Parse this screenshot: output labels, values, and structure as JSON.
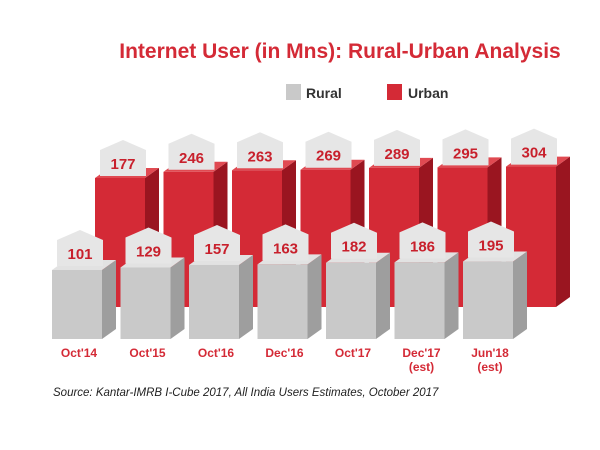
{
  "chart_data": {
    "type": "bar",
    "title": "Internet User (in Mns): Rural-Urban Analysis",
    "categories": [
      {
        "line1": "Oct'14",
        "line2": ""
      },
      {
        "line1": "Oct'15",
        "line2": ""
      },
      {
        "line1": "Oct'16",
        "line2": ""
      },
      {
        "line1": "Dec'16",
        "line2": ""
      },
      {
        "line1": "Oct'17",
        "line2": ""
      },
      {
        "line1": "Dec'17",
        "line2": "(est)"
      },
      {
        "line1": "Jun'18",
        "line2": "(est)"
      }
    ],
    "series": [
      {
        "name": "Rural",
        "values": [
          101,
          129,
          157,
          163,
          182,
          186,
          195
        ]
      },
      {
        "name": "Urban",
        "values": [
          177,
          246,
          263,
          269,
          289,
          295,
          304
        ]
      }
    ],
    "xlabel": "",
    "ylabel": "",
    "source": "Source: Kantar-IMRB I-Cube 2017, All India Users Estimates, October 2017"
  },
  "colors": {
    "title": "#d42a36",
    "rural_front": "#c9c9c9",
    "rural_side": "#9e9e9e",
    "rural_top": "#e2e2e2",
    "urban_front": "#d42a36",
    "urban_side": "#9a1520",
    "urban_top": "#e04a52",
    "label_box": "#e6e6e6",
    "label_text": "#c8202c",
    "category_text": "#d42a36"
  }
}
